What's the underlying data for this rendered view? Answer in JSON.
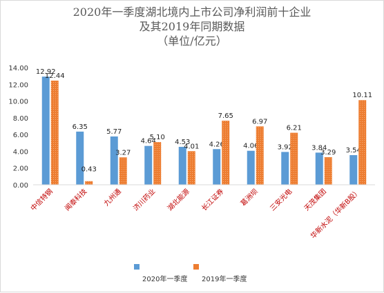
{
  "chart_data": {
    "type": "bar",
    "title_lines": [
      "2020年一季度湖北境内上市公司净利润前十企业",
      "及其2019年同期数据",
      "（单位/亿元）"
    ],
    "categories": [
      "中信特钢",
      "闻泰科技",
      "九州通",
      "济川药业",
      "湖北能源",
      "长江证券",
      "葛洲坝",
      "三安光电",
      "天茂集团",
      "华新水泥（华新B股）"
    ],
    "series": [
      {
        "name": "2020年一季度",
        "color": "#5b9bd5",
        "values": [
          12.92,
          6.35,
          5.77,
          4.64,
          4.53,
          4.26,
          4.06,
          3.92,
          3.84,
          3.54
        ]
      },
      {
        "name": "2019年一季度",
        "color": "#ed7d31",
        "values": [
          12.44,
          0.43,
          3.27,
          5.1,
          4.01,
          7.65,
          6.97,
          6.21,
          3.29,
          10.11
        ]
      }
    ],
    "value_labels": [
      [
        "12.92",
        "6.35",
        "5.77",
        "4.64",
        "4.53",
        "4.26",
        "4.06",
        "3.92",
        "3.84",
        "3.54"
      ],
      [
        "12.44",
        "0.43",
        "3.27",
        "5.10",
        "4.01",
        "7.65",
        "6.97",
        "6.21",
        "3.29",
        "10.11"
      ]
    ],
    "yticks": [
      "0.00",
      "2.00",
      "4.00",
      "6.00",
      "8.00",
      "10.00",
      "12.00",
      "14.00"
    ],
    "ylim": [
      0,
      14
    ],
    "grid": false,
    "legend_position": "bottom",
    "category_label_color": "#c00000",
    "axis_color": "#d9d9d9"
  }
}
